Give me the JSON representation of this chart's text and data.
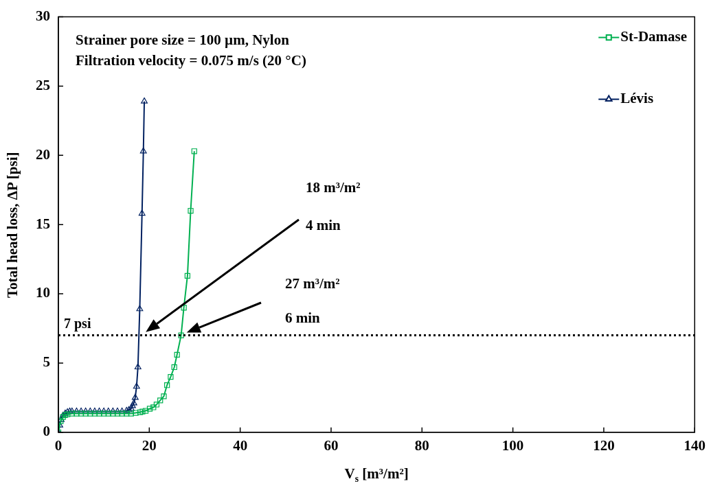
{
  "chart_data": {
    "type": "line",
    "xlabel": "V$_{s}$ [m³/m²]",
    "ylabel": "Total head loss, ΔP [psi]",
    "xlim": [
      0,
      140
    ],
    "xticks": [
      0,
      20,
      40,
      60,
      80,
      100,
      120,
      140
    ],
    "ylim": [
      0,
      30
    ],
    "yticks": [
      0,
      5,
      10,
      15,
      20,
      25,
      30
    ],
    "grid": false,
    "legend": "top right",
    "line_style": "solid",
    "series": [
      {
        "name": "St-Damase",
        "color": "#00b050",
        "marker": "square",
        "x": [
          0,
          0.5,
          1,
          1.5,
          2,
          3,
          4,
          5,
          6,
          7,
          8,
          9,
          10,
          11,
          12,
          13,
          14,
          15,
          16,
          17,
          18,
          18.5,
          19.2,
          20.1,
          20.9,
          21.6,
          22.4,
          23.2,
          23.9,
          24.7,
          25.5,
          26.1,
          27.0,
          27.6,
          28.4,
          29.1,
          29.9
        ],
        "values": [
          0,
          0.8,
          1.1,
          1.25,
          1.3,
          1.35,
          1.35,
          1.35,
          1.35,
          1.35,
          1.35,
          1.35,
          1.35,
          1.35,
          1.35,
          1.35,
          1.35,
          1.35,
          1.35,
          1.4,
          1.45,
          1.5,
          1.55,
          1.7,
          1.8,
          2.0,
          2.3,
          2.6,
          3.4,
          4.0,
          4.7,
          5.6,
          7.0,
          9.0,
          11.3,
          16.0,
          20.3
        ]
      },
      {
        "name": "Lévis",
        "color": "#002060",
        "marker": "triangle",
        "x": [
          0,
          0.3,
          0.6,
          1,
          1.5,
          2,
          2.5,
          3,
          4,
          5,
          6,
          7,
          8,
          9,
          10,
          11,
          12,
          13,
          14,
          15,
          15.5,
          16,
          16.3,
          16.6,
          16.9,
          17.2,
          17.5,
          17.9,
          18.4,
          18.7,
          18.9
        ],
        "values": [
          0,
          0.5,
          0.9,
          1.2,
          1.35,
          1.45,
          1.5,
          1.5,
          1.5,
          1.5,
          1.5,
          1.5,
          1.5,
          1.5,
          1.5,
          1.5,
          1.5,
          1.5,
          1.5,
          1.55,
          1.6,
          1.7,
          1.9,
          2.1,
          2.5,
          3.3,
          4.7,
          8.9,
          15.8,
          20.3,
          23.9
        ]
      }
    ],
    "ref_lines": [
      {
        "axis": "y",
        "value": 7,
        "label": "7 psi",
        "color": "#000000",
        "line_style": "dotted"
      }
    ],
    "annotations": [
      "Strainer pore size = 100 µm, Nylon",
      "Filtration velocity = 0.075 m/s (20 °C)",
      "18 m³/m²",
      "4 min",
      "27 m³/m²",
      "6 min"
    ]
  }
}
